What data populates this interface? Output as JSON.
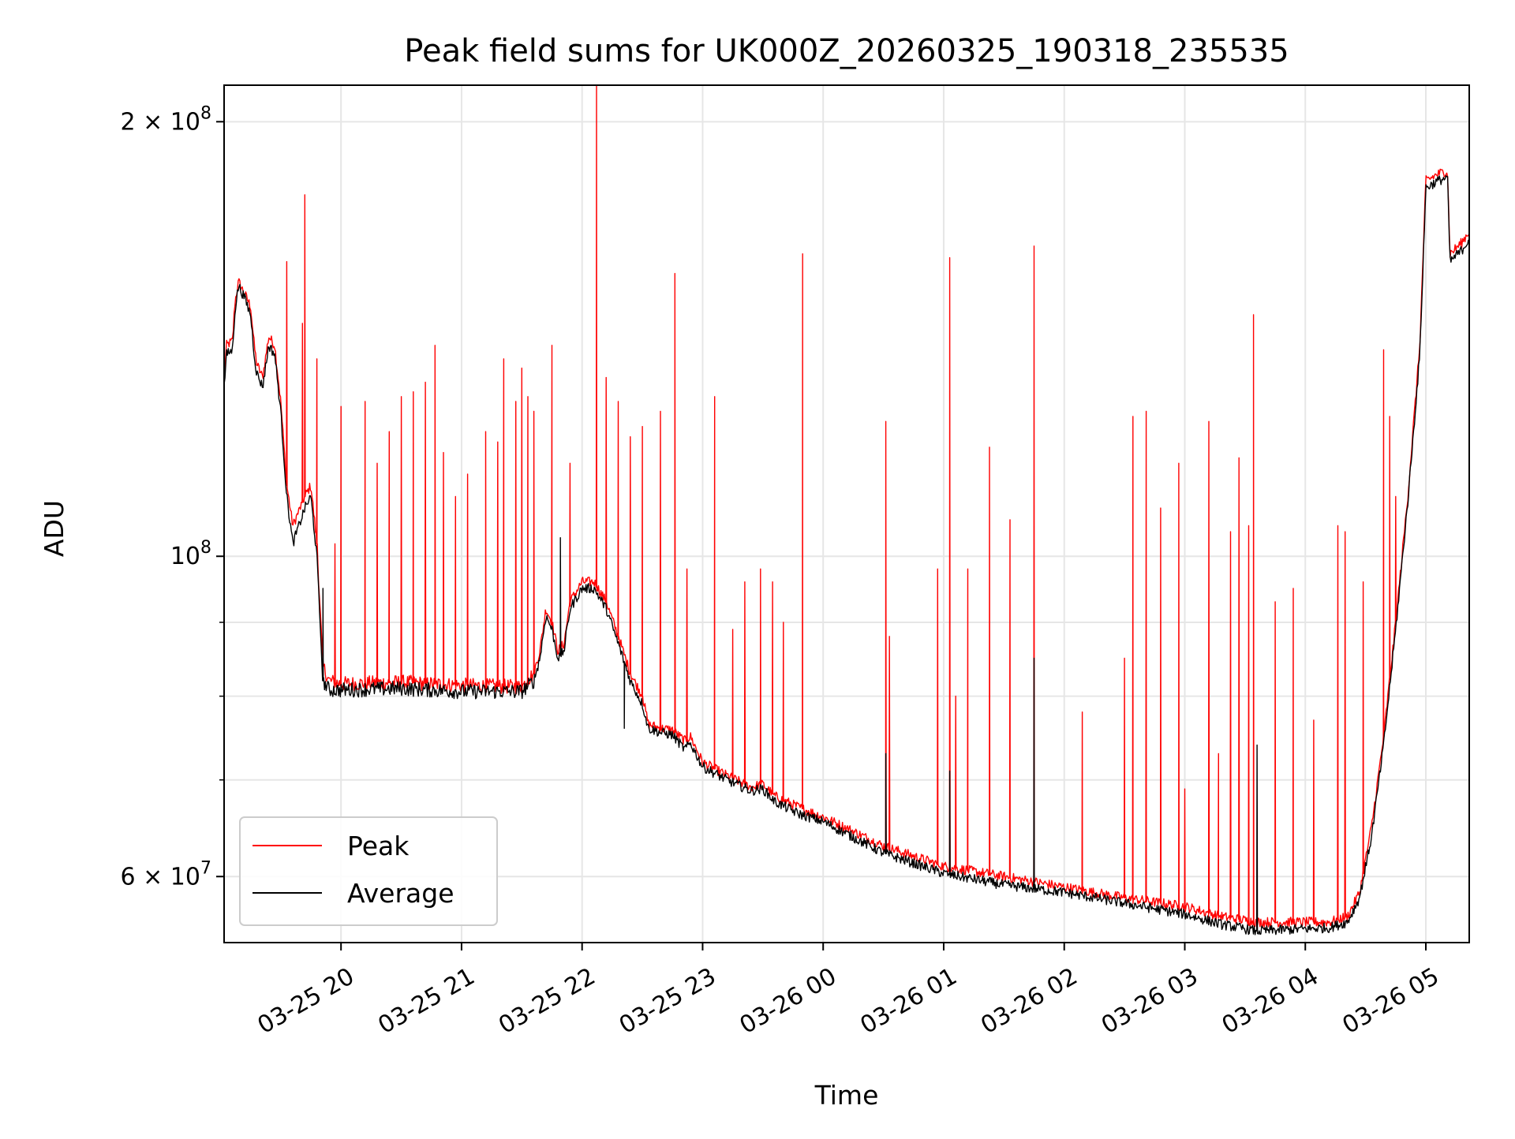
{
  "chart_data": {
    "type": "line",
    "title": "Peak field sums for UK000Z_20260325_190318_235535",
    "xlabel": "Time",
    "ylabel": "ADU",
    "yscale": "log",
    "ylim": [
      54000000,
      212000000
    ],
    "xlim_hours": [
      19.03,
      29.36
    ],
    "grid": true,
    "legend_position": "lower-left",
    "x_ticks": [
      {
        "label": "03-25 20",
        "hour": 20
      },
      {
        "label": "03-25 21",
        "hour": 21
      },
      {
        "label": "03-25 22",
        "hour": 22
      },
      {
        "label": "03-25 23",
        "hour": 23
      },
      {
        "label": "03-26 00",
        "hour": 24
      },
      {
        "label": "03-26 01",
        "hour": 25
      },
      {
        "label": "03-26 02",
        "hour": 26
      },
      {
        "label": "03-26 03",
        "hour": 27
      },
      {
        "label": "03-26 04",
        "hour": 28
      },
      {
        "label": "03-26 05",
        "hour": 29
      }
    ],
    "y_major_ticks": [
      {
        "value": 60000000,
        "base": "6 × 10",
        "exp": "7"
      },
      {
        "value": 100000000,
        "base": "10",
        "exp": "8"
      },
      {
        "value": 200000000,
        "base": "2 × 10",
        "exp": "8"
      }
    ],
    "y_minor_grid": [
      70000000,
      80000000,
      90000000
    ],
    "series": [
      {
        "name": "Peak",
        "color": "#ff0000",
        "baseline": [
          [
            19.03,
            133000000.0
          ],
          [
            19.05,
            140000000.0
          ],
          [
            19.1,
            141000000.0
          ],
          [
            19.12,
            150000000.0
          ],
          [
            19.15,
            155000000.0
          ],
          [
            19.2,
            152000000.0
          ],
          [
            19.25,
            149000000.0
          ],
          [
            19.28,
            140000000.0
          ],
          [
            19.3,
            136000000.0
          ],
          [
            19.35,
            133000000.0
          ],
          [
            19.4,
            142000000.0
          ],
          [
            19.45,
            140000000.0
          ],
          [
            19.5,
            128000000.0
          ],
          [
            19.55,
            112000000.0
          ],
          [
            19.6,
            105000000.0
          ],
          [
            19.7,
            110000000.0
          ],
          [
            19.75,
            112000000.0
          ],
          [
            19.8,
            102000000.0
          ],
          [
            19.85,
            84000000.0
          ],
          [
            19.9,
            82000000.0
          ],
          [
            20.0,
            81600000.0
          ],
          [
            20.5,
            81800000.0
          ],
          [
            21.0,
            81400000.0
          ],
          [
            21.5,
            81200000.0
          ],
          [
            21.6,
            83000000.0
          ],
          [
            21.65,
            86000000.0
          ],
          [
            21.7,
            92000000.0
          ],
          [
            21.75,
            90000000.0
          ],
          [
            21.8,
            86000000.0
          ],
          [
            21.85,
            87000000.0
          ],
          [
            21.9,
            93000000.0
          ],
          [
            22.0,
            96000000.0
          ],
          [
            22.1,
            96000000.0
          ],
          [
            22.2,
            93000000.0
          ],
          [
            22.3,
            88000000.0
          ],
          [
            22.4,
            83000000.0
          ],
          [
            22.5,
            80000000.0
          ],
          [
            22.55,
            76500000.0
          ],
          [
            22.65,
            76000000.0
          ],
          [
            22.75,
            75800000.0
          ],
          [
            22.85,
            74500000.0
          ],
          [
            22.9,
            75000000.0
          ],
          [
            23.0,
            72000000.0
          ],
          [
            23.2,
            70500000.0
          ],
          [
            23.4,
            69200000.0
          ],
          [
            23.5,
            69500000.0
          ],
          [
            23.6,
            68200000.0
          ],
          [
            23.8,
            67000000.0
          ],
          [
            24.0,
            66000000.0
          ],
          [
            24.5,
            63000000.0
          ],
          [
            25.0,
            61000000.0
          ],
          [
            25.5,
            60000000.0
          ],
          [
            26.0,
            59000000.0
          ],
          [
            26.5,
            58000000.0
          ],
          [
            27.0,
            57200000.0
          ],
          [
            27.3,
            56300000.0
          ],
          [
            27.6,
            55800000.0
          ],
          [
            28.0,
            55800000.0
          ],
          [
            28.2,
            55800000.0
          ],
          [
            28.35,
            56300000.0
          ],
          [
            28.45,
            58500000.0
          ],
          [
            28.55,
            65000000.0
          ],
          [
            28.65,
            75000000.0
          ],
          [
            28.75,
            90000000.0
          ],
          [
            28.85,
            110000000.0
          ],
          [
            28.95,
            140000000.0
          ],
          [
            29.0,
            182000000.0
          ],
          [
            29.1,
            184000000.0
          ],
          [
            29.18,
            185000000.0
          ],
          [
            29.2,
            162000000.0
          ],
          [
            29.3,
            165000000.0
          ],
          [
            29.36,
            168000000.0
          ]
        ],
        "spikes": [
          [
            19.55,
            160000000.0
          ],
          [
            19.7,
            178000000.0
          ],
          [
            19.68,
            145000000.0
          ],
          [
            19.8,
            137000000.0
          ],
          [
            19.95,
            102000000.0
          ],
          [
            20.0,
            127000000.0
          ],
          [
            20.2,
            128000000.0
          ],
          [
            20.3,
            116000000.0
          ],
          [
            20.4,
            122000000.0
          ],
          [
            20.5,
            129000000.0
          ],
          [
            20.6,
            130000000.0
          ],
          [
            20.7,
            132000000.0
          ],
          [
            20.78,
            140000000.0
          ],
          [
            20.85,
            118000000.0
          ],
          [
            20.95,
            110000000.0
          ],
          [
            21.05,
            114000000.0
          ],
          [
            21.2,
            122000000.0
          ],
          [
            21.3,
            120000000.0
          ],
          [
            21.35,
            137000000.0
          ],
          [
            21.45,
            128000000.0
          ],
          [
            21.5,
            135000000.0
          ],
          [
            21.55,
            129000000.0
          ],
          [
            21.6,
            126000000.0
          ],
          [
            21.75,
            140000000.0
          ],
          [
            21.9,
            116000000.0
          ],
          [
            22.12,
            212000000.0
          ],
          [
            22.2,
            133000000.0
          ],
          [
            22.3,
            128000000.0
          ],
          [
            22.4,
            121000000.0
          ],
          [
            22.5,
            123000000.0
          ],
          [
            22.65,
            126000000.0
          ],
          [
            22.77,
            157000000.0
          ],
          [
            22.87,
            98000000.0
          ],
          [
            23.1,
            129000000.0
          ],
          [
            23.25,
            89000000.0
          ],
          [
            23.35,
            96000000.0
          ],
          [
            23.48,
            98000000.0
          ],
          [
            23.58,
            96000000.0
          ],
          [
            23.67,
            90000000.0
          ],
          [
            23.83,
            162000000.0
          ],
          [
            24.52,
            124000000.0
          ],
          [
            24.55,
            88000000.0
          ],
          [
            24.95,
            98000000.0
          ],
          [
            25.05,
            161000000.0
          ],
          [
            25.1,
            80000000.0
          ],
          [
            25.2,
            98000000.0
          ],
          [
            25.38,
            119000000.0
          ],
          [
            25.55,
            106000000.0
          ],
          [
            25.75,
            164000000.0
          ],
          [
            26.15,
            78000000.0
          ],
          [
            26.5,
            85000000.0
          ],
          [
            26.57,
            125000000.0
          ],
          [
            26.68,
            126000000.0
          ],
          [
            26.8,
            108000000.0
          ],
          [
            26.95,
            116000000.0
          ],
          [
            27.0,
            69000000.0
          ],
          [
            27.2,
            124000000.0
          ],
          [
            27.28,
            73000000.0
          ],
          [
            27.38,
            104000000.0
          ],
          [
            27.45,
            117000000.0
          ],
          [
            27.53,
            105000000.0
          ],
          [
            27.57,
            147000000.0
          ],
          [
            27.75,
            93000000.0
          ],
          [
            27.9,
            95000000.0
          ],
          [
            28.07,
            77000000.0
          ],
          [
            28.27,
            105000000.0
          ],
          [
            28.33,
            104000000.0
          ],
          [
            28.48,
            96000000.0
          ],
          [
            28.65,
            139000000.0
          ],
          [
            28.7,
            125000000.0
          ],
          [
            28.75,
            110000000.0
          ]
        ]
      },
      {
        "name": "Average",
        "color": "#000000",
        "baseline": [
          [
            19.03,
            131000000.0
          ],
          [
            19.05,
            138000000.0
          ],
          [
            19.1,
            139000000.0
          ],
          [
            19.12,
            148000000.0
          ],
          [
            19.15,
            154000000.0
          ],
          [
            19.2,
            151000000.0
          ],
          [
            19.25,
            147000000.0
          ],
          [
            19.28,
            138000000.0
          ],
          [
            19.3,
            134000000.0
          ],
          [
            19.35,
            131000000.0
          ],
          [
            19.4,
            140000000.0
          ],
          [
            19.45,
            138000000.0
          ],
          [
            19.5,
            126000000.0
          ],
          [
            19.55,
            110000000.0
          ],
          [
            19.6,
            102000000.0
          ],
          [
            19.7,
            108000000.0
          ],
          [
            19.75,
            110000000.0
          ],
          [
            19.8,
            100000000.0
          ],
          [
            19.85,
            82000000.0
          ],
          [
            19.9,
            80800000.0
          ],
          [
            20.0,
            80800000.0
          ],
          [
            20.5,
            81000000.0
          ],
          [
            21.0,
            80600000.0
          ],
          [
            21.5,
            80600000.0
          ],
          [
            21.6,
            82000000.0
          ],
          [
            21.65,
            85000000.0
          ],
          [
            21.7,
            91000000.0
          ],
          [
            21.75,
            89000000.0
          ],
          [
            21.8,
            85000000.0
          ],
          [
            21.85,
            86000000.0
          ],
          [
            21.9,
            92000000.0
          ],
          [
            22.0,
            95000000.0
          ],
          [
            22.1,
            95000000.0
          ],
          [
            22.2,
            92000000.0
          ],
          [
            22.3,
            87000000.0
          ],
          [
            22.4,
            82000000.0
          ],
          [
            22.5,
            79000000.0
          ],
          [
            22.55,
            76000000.0
          ],
          [
            22.65,
            75500000.0
          ],
          [
            22.75,
            75200000.0
          ],
          [
            22.85,
            73500000.0
          ],
          [
            22.9,
            74200000.0
          ],
          [
            23.0,
            71500000.0
          ],
          [
            23.2,
            70000000.0
          ],
          [
            23.4,
            68800000.0
          ],
          [
            23.5,
            69000000.0
          ],
          [
            23.6,
            67600000.0
          ],
          [
            23.8,
            66300000.0
          ],
          [
            24.0,
            65500000.0
          ],
          [
            24.5,
            62300000.0
          ],
          [
            25.0,
            60300000.0
          ],
          [
            25.5,
            59200000.0
          ],
          [
            26.0,
            58500000.0
          ],
          [
            26.5,
            57500000.0
          ],
          [
            27.0,
            56500000.0
          ],
          [
            27.3,
            55600000.0
          ],
          [
            27.6,
            55000000.0
          ],
          [
            28.0,
            55200000.0
          ],
          [
            28.2,
            55300000.0
          ],
          [
            28.35,
            55800000.0
          ],
          [
            28.45,
            58000000.0
          ],
          [
            28.55,
            64000000.0
          ],
          [
            28.65,
            74000000.0
          ],
          [
            28.75,
            89000000.0
          ],
          [
            28.85,
            109000000.0
          ],
          [
            28.95,
            138000000.0
          ],
          [
            29.0,
            180000000.0
          ],
          [
            29.1,
            182000000.0
          ],
          [
            29.18,
            183000000.0
          ],
          [
            29.2,
            160000000.0
          ],
          [
            29.3,
            163000000.0
          ],
          [
            29.36,
            166000000.0
          ]
        ],
        "spikes": [
          [
            19.85,
            95000000.0
          ],
          [
            21.82,
            103000000.0
          ],
          [
            22.35,
            76000000.0
          ],
          [
            24.52,
            73000000.0
          ],
          [
            25.05,
            71000000.0
          ],
          [
            25.75,
            85000000.0
          ],
          [
            27.6,
            74000000.0
          ]
        ]
      }
    ]
  }
}
